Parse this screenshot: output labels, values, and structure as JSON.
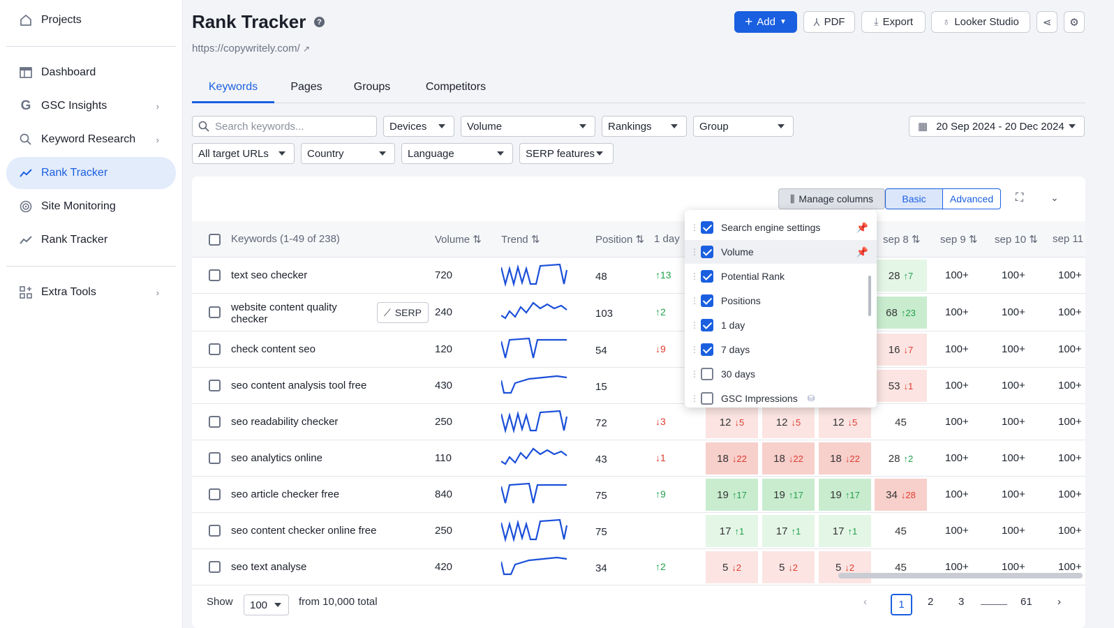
{
  "sidebar": {
    "projects": "Projects",
    "items": [
      {
        "label": "Dashboard"
      },
      {
        "label": "GSC Insights"
      },
      {
        "label": "Keyword Research"
      },
      {
        "label": "Rank Tracker"
      },
      {
        "label": "Site Monitoring"
      },
      {
        "label": "Rank Tracker"
      }
    ],
    "extra": "Extra Tools"
  },
  "header": {
    "title": "Rank Tracker",
    "url": "https://copywritely.com/",
    "add": "Add",
    "pdf": "PDF",
    "export": "Export",
    "looker": "Looker Studio"
  },
  "tabs": [
    "Keywords",
    "Pages",
    "Groups",
    "Competitors"
  ],
  "filters": {
    "search_placeholder": "Search keywords...",
    "devices": "Devices",
    "volume": "Volume",
    "rankings": "Rankings",
    "group": "Group",
    "date": "20 Sep 2024 - 20 Dec 2024",
    "urls": "All target URLs",
    "country": "Country",
    "language": "Language",
    "serp": "SERP features"
  },
  "toolbar": {
    "manage": "Manage columns",
    "basic": "Basic",
    "advanced": "Advanced"
  },
  "table": {
    "headers": {
      "keywords": "Keywords (1-49 of 238)",
      "volume": "Volume",
      "trend": "Trend",
      "position": "Position",
      "day": "1 day",
      "sep8": "sep 8",
      "sep9": "sep 9",
      "sep10": "sep 10",
      "sep11": "sep 11"
    },
    "serp_label": "SERP",
    "rows": [
      {
        "kw": "text seo checker",
        "vol": "720",
        "pos": "48",
        "d": "13",
        "dd": "up",
        "p8": "28",
        "c8": "7",
        "t8": "up",
        "s9": "100+",
        "s10": "100+",
        "s11": "100+"
      },
      {
        "kw": "website content quality checker",
        "vol": "240",
        "pos": "103",
        "d": "2",
        "dd": "up",
        "p8": "68",
        "c8": "23",
        "t8": "up",
        "s9": "100+",
        "s10": "100+",
        "s11": "100+"
      },
      {
        "kw": "check content seo",
        "vol": "120",
        "pos": "54",
        "d": "9",
        "dd": "dn",
        "p8": "16",
        "c8": "7",
        "t8": "dn",
        "s9": "100+",
        "s10": "100+",
        "s11": "100+"
      },
      {
        "kw": "seo content analysis tool free",
        "vol": "430",
        "pos": "15",
        "d": "",
        "dd": "",
        "p8": "53",
        "c8": "1",
        "t8": "dn",
        "s9": "100+",
        "s10": "100+",
        "s11": "100+"
      },
      {
        "kw": "seo readability checker",
        "vol": "250",
        "pos": "72",
        "d": "3",
        "dd": "dn",
        "a": "12",
        "ac": "5",
        "at": "dn",
        "p8": "45",
        "c8": "",
        "t8": "",
        "s9": "100+",
        "s10": "100+",
        "s11": "100+"
      },
      {
        "kw": "seo analytics online",
        "vol": "110",
        "pos": "43",
        "d": "1",
        "dd": "dn",
        "a": "18",
        "ac": "22",
        "at": "dn",
        "p8": "28",
        "c8": "2",
        "t8": "up",
        "s9": "100+",
        "s10": "100+",
        "s11": "100+"
      },
      {
        "kw": "seo article checker free",
        "vol": "840",
        "pos": "75",
        "d": "9",
        "dd": "up",
        "a": "19",
        "ac": "17",
        "at": "up",
        "p8": "34",
        "c8": "28",
        "t8": "dn",
        "s9": "100+",
        "s10": "100+",
        "s11": "100+"
      },
      {
        "kw": "seo content checker online free",
        "vol": "250",
        "pos": "75",
        "d": "",
        "dd": "",
        "a": "17",
        "ac": "1",
        "at": "up",
        "p8": "45",
        "c8": "",
        "t8": "",
        "s9": "100+",
        "s10": "100+",
        "s11": "100+"
      },
      {
        "kw": "seo text analyse",
        "vol": "420",
        "pos": "34",
        "d": "2",
        "dd": "up",
        "a": "5",
        "ac": "2",
        "at": "dn",
        "p8": "45",
        "c8": "",
        "t8": "",
        "s9": "100+",
        "s10": "100+",
        "s11": "100+"
      }
    ]
  },
  "popup": [
    "Search engine settings",
    "Volume",
    "Potential Rank",
    "Positions",
    "1 day",
    "7 days",
    "30 days",
    "GSC Impressions"
  ],
  "footer": {
    "show": "Show",
    "per_page": "100",
    "total": "from 10,000 total",
    "pages": [
      "1",
      "2",
      "3",
      "61"
    ]
  },
  "colors": {
    "accent": "#1a5fe0",
    "up": "#22a04b",
    "down": "#e03b2e"
  }
}
